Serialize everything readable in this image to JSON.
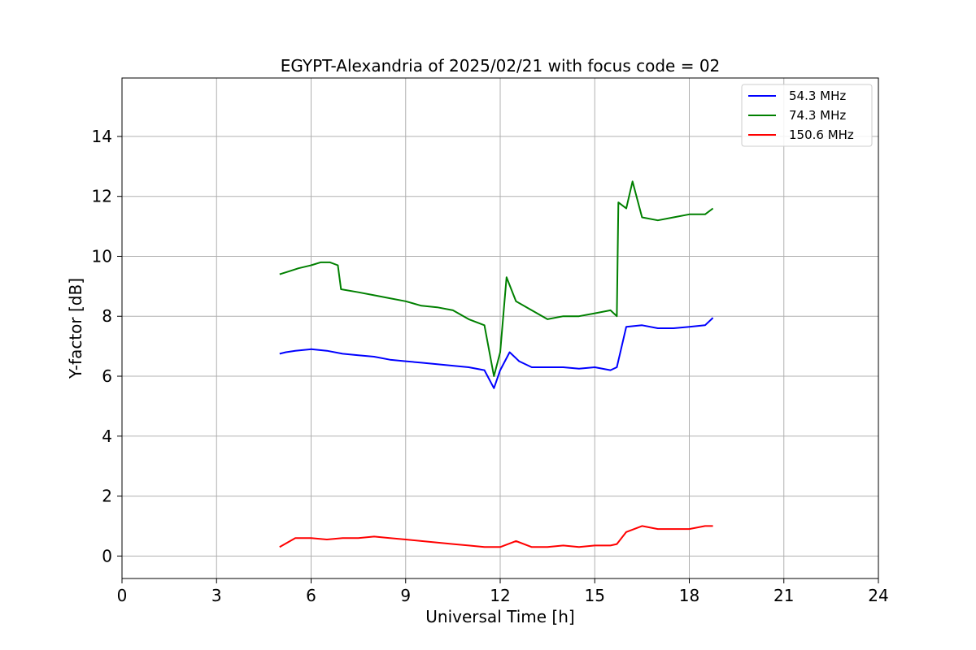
{
  "chart_data": {
    "type": "line",
    "title": "EGYPT-Alexandria of 2025/02/21 with focus code = 02",
    "xlabel": "Universal Time [h]",
    "ylabel": "Y-factor [dB]",
    "xlim": [
      0,
      24
    ],
    "ylim": [
      -0.75,
      15.95
    ],
    "xticks": [
      0,
      3,
      6,
      9,
      12,
      15,
      18,
      21,
      24
    ],
    "xtick_labels": [
      "0",
      "3",
      "6",
      "9",
      "12",
      "15",
      "18",
      "21",
      "24"
    ],
    "yticks": [
      0,
      2,
      4,
      6,
      8,
      10,
      12,
      14
    ],
    "ytick_labels": [
      "0",
      "2",
      "4",
      "6",
      "8",
      "10",
      "12",
      "14"
    ],
    "grid": true,
    "legend_position": "top-right",
    "series": [
      {
        "name": "  54.3 MHz",
        "color": "#0000ff",
        "x": [
          5.0,
          5.2,
          5.5,
          6.0,
          6.5,
          7.0,
          7.5,
          8.0,
          8.5,
          9.0,
          9.5,
          10.0,
          10.5,
          11.0,
          11.5,
          11.8,
          12.0,
          12.3,
          12.6,
          13.0,
          13.5,
          14.0,
          14.5,
          15.0,
          15.5,
          15.7,
          16.0,
          16.5,
          17.0,
          17.5,
          18.0,
          18.5,
          18.75
        ],
        "values": [
          6.75,
          6.8,
          6.85,
          6.9,
          6.85,
          6.75,
          6.7,
          6.65,
          6.55,
          6.5,
          6.45,
          6.4,
          6.35,
          6.3,
          6.2,
          5.6,
          6.2,
          6.8,
          6.5,
          6.3,
          6.3,
          6.3,
          6.25,
          6.3,
          6.2,
          6.3,
          7.65,
          7.7,
          7.6,
          7.6,
          7.65,
          7.7,
          7.95
        ]
      },
      {
        "name": "  74.3 MHz",
        "color": "#008000",
        "x": [
          5.0,
          5.3,
          5.6,
          6.0,
          6.3,
          6.6,
          6.85,
          6.95,
          7.5,
          8.0,
          8.5,
          9.0,
          9.5,
          10.0,
          10.5,
          11.0,
          11.5,
          11.8,
          12.0,
          12.2,
          12.5,
          13.0,
          13.5,
          14.0,
          14.5,
          15.0,
          15.5,
          15.7,
          15.75,
          16.0,
          16.2,
          16.5,
          17.0,
          17.5,
          18.0,
          18.5,
          18.75
        ],
        "values": [
          9.4,
          9.5,
          9.6,
          9.7,
          9.8,
          9.8,
          9.7,
          8.9,
          8.8,
          8.7,
          8.6,
          8.5,
          8.35,
          8.3,
          8.2,
          7.9,
          7.7,
          6.0,
          6.8,
          9.3,
          8.5,
          8.2,
          7.9,
          8.0,
          8.0,
          8.1,
          8.2,
          8.0,
          11.8,
          11.6,
          12.5,
          11.3,
          11.2,
          11.3,
          11.4,
          11.4,
          11.6
        ]
      },
      {
        "name": " 150.6 MHz",
        "color": "#ff0000",
        "x": [
          5.0,
          5.5,
          6.0,
          6.5,
          7.0,
          7.5,
          8.0,
          8.5,
          9.0,
          9.5,
          10.0,
          10.5,
          11.0,
          11.5,
          12.0,
          12.5,
          13.0,
          13.5,
          14.0,
          14.5,
          15.0,
          15.5,
          15.7,
          16.0,
          16.5,
          17.0,
          17.5,
          18.0,
          18.5,
          18.75
        ],
        "values": [
          0.3,
          0.6,
          0.6,
          0.55,
          0.6,
          0.6,
          0.65,
          0.6,
          0.55,
          0.5,
          0.45,
          0.4,
          0.35,
          0.3,
          0.3,
          0.5,
          0.3,
          0.3,
          0.35,
          0.3,
          0.35,
          0.35,
          0.4,
          0.8,
          1.0,
          0.9,
          0.9,
          0.9,
          1.0,
          1.0
        ]
      }
    ]
  }
}
